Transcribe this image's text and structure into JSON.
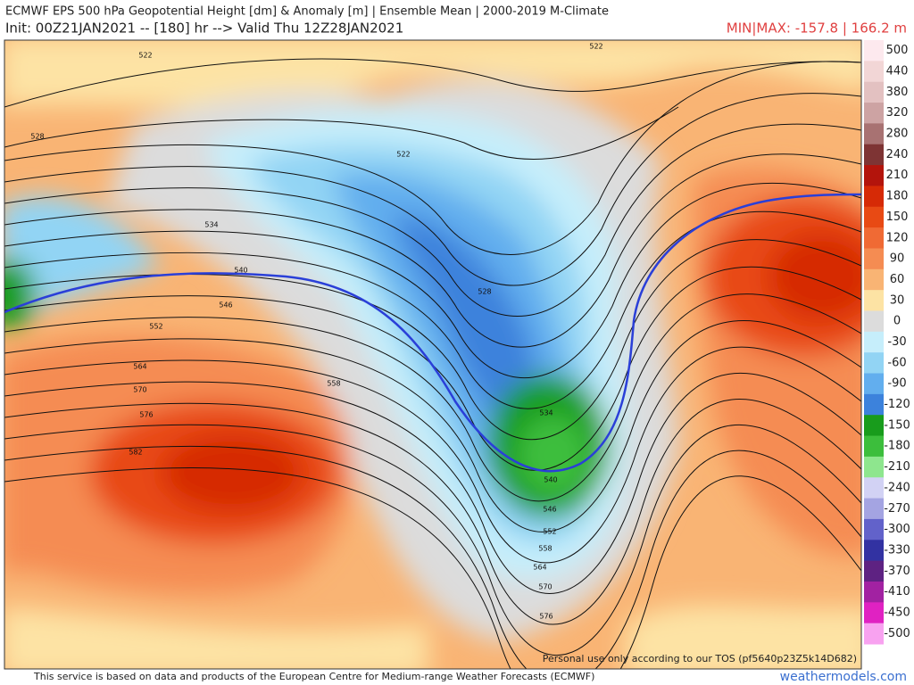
{
  "header": {
    "title": "ECMWF EPS 500 hPa Geopotential Height [dm] & Anomaly [m] | Ensemble Mean | 2000-2019 M-Climate",
    "init": "Init: 00Z21JAN2021 -- [180] hr --> Valid Thu 12Z28JAN2021",
    "minmax": "MIN|MAX: -157.8 | 166.2 m"
  },
  "colorbar": {
    "labels": [
      500,
      440,
      380,
      320,
      280,
      240,
      210,
      180,
      150,
      120,
      90,
      60,
      30,
      0,
      -30,
      -60,
      -90,
      -120,
      -150,
      -180,
      -210,
      -240,
      -270,
      -300,
      -330,
      -370,
      -410,
      -450,
      -500
    ],
    "colors": [
      "#fde9ee",
      "#f2d6d6",
      "#e3c1c1",
      "#cda3a3",
      "#a87272",
      "#7e3434",
      "#b3140c",
      "#d62a06",
      "#e84a14",
      "#f06a34",
      "#f58c52",
      "#f9b474",
      "#fde3a4",
      "#dcdcdc",
      "#c6eefb",
      "#92d4f4",
      "#62aeee",
      "#3c82dc",
      "#189c1c",
      "#3cbe3c",
      "#8ee68e",
      "#d2d2f4",
      "#a4a4e2",
      "#6262ca",
      "#3232a2",
      "#5e2282",
      "#a222a2",
      "#e022c2",
      "#f8a2f0"
    ]
  },
  "map": {
    "contour_labels": [
      522,
      522,
      528,
      522,
      534,
      540,
      546,
      552,
      528,
      558,
      564,
      570,
      576,
      582,
      534,
      540,
      546,
      552,
      558,
      564,
      570,
      576
    ]
  },
  "footer": {
    "tos": "Personal use only according to our TOS (pf5640p23Z5k14D682)",
    "disclaimer": "This service is based on data and products of the European Centre for Medium-range Weather Forecasts (ECMWF)",
    "brand": "weathermodels.com"
  }
}
